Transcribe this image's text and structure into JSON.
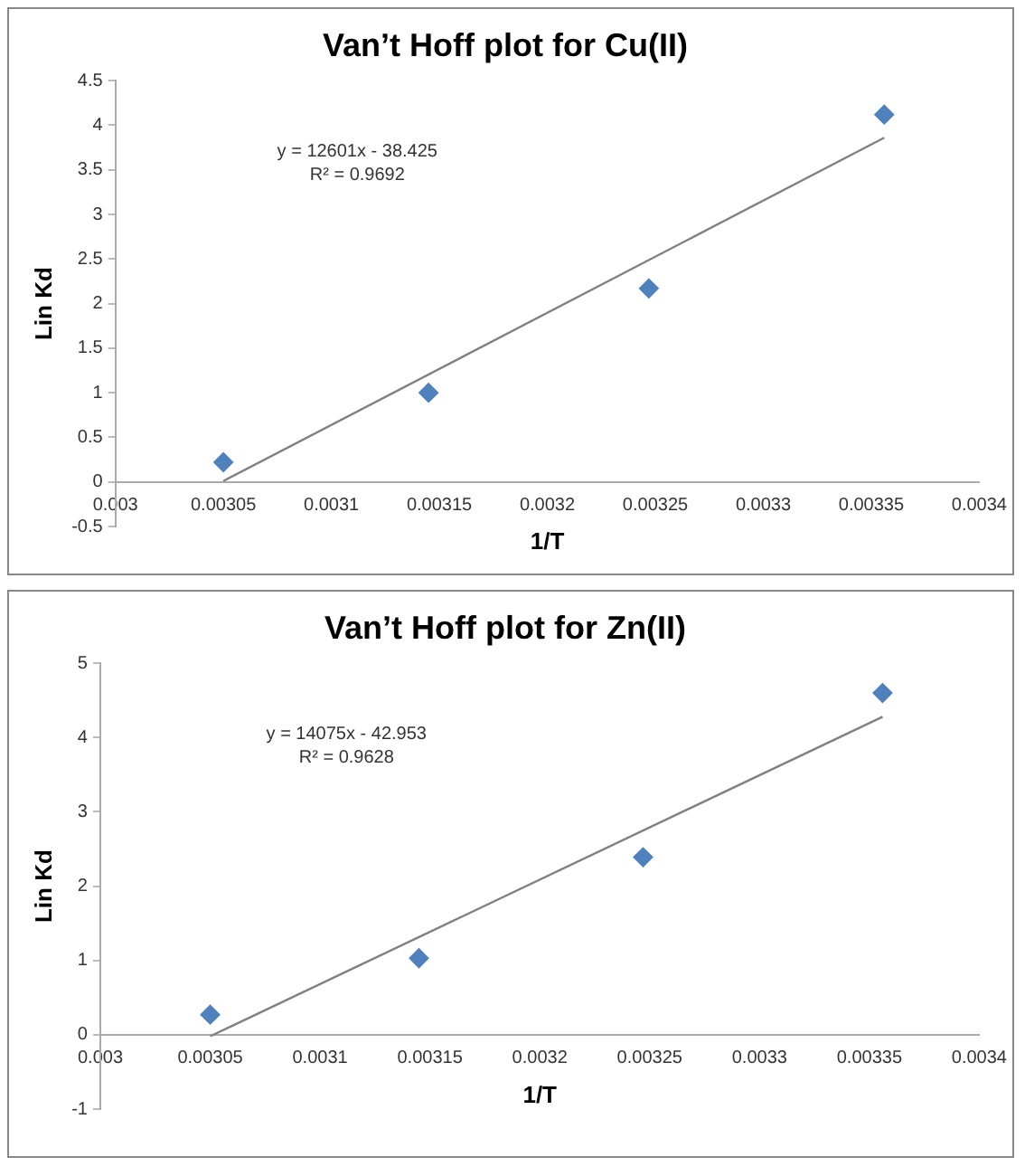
{
  "chart_data": [
    {
      "type": "scatter",
      "title": "Van’t Hoff plot for Cu(II)",
      "xlabel": "1/T",
      "ylabel": "Lin Kd",
      "annotations": [
        "y = 12601x - 38.425",
        "R² = 0.9692"
      ],
      "grid": false,
      "legend": false,
      "xlim": [
        0.003,
        0.0034
      ],
      "xticks": [
        0.003,
        0.00305,
        0.0031,
        0.00315,
        0.0032,
        0.00325,
        0.0033,
        0.00335,
        0.0034
      ],
      "ylim": [
        -0.5,
        4.5
      ],
      "yticks": [
        -0.5,
        0,
        0.5,
        1,
        1.5,
        2,
        2.5,
        3,
        3.5,
        4,
        4.5
      ],
      "series": [
        {
          "marker": "diamond",
          "color": "#4f81bd",
          "x": [
            0.00305,
            0.003145,
            0.003247,
            0.003356
          ],
          "values": [
            0.22,
            1.0,
            2.17,
            4.12
          ]
        },
        {
          "type": "line",
          "color": "#808080",
          "x": [
            0.00305,
            0.003356
          ],
          "values": [
            0.01,
            3.86
          ]
        }
      ]
    },
    {
      "type": "scatter",
      "title": "Van’t Hoff plot for Zn(II)",
      "xlabel": "1/T",
      "ylabel": "Lin Kd",
      "annotations": [
        "y = 14075x - 42.953",
        "R² = 0.9628"
      ],
      "grid": false,
      "legend": false,
      "xlim": [
        0.003,
        0.0034
      ],
      "xticks": [
        0.003,
        0.00305,
        0.0031,
        0.00315,
        0.0032,
        0.00325,
        0.0033,
        0.00335,
        0.0034
      ],
      "ylim": [
        -1,
        5
      ],
      "yticks": [
        -1,
        0,
        1,
        2,
        3,
        4,
        5
      ],
      "series": [
        {
          "marker": "diamond",
          "color": "#4f81bd",
          "x": [
            0.00305,
            0.003145,
            0.003247,
            0.003356
          ],
          "values": [
            0.27,
            1.03,
            2.39,
            4.6
          ]
        },
        {
          "type": "line",
          "color": "#808080",
          "x": [
            0.00305,
            0.003356
          ],
          "values": [
            -0.02,
            4.28
          ]
        }
      ]
    }
  ]
}
